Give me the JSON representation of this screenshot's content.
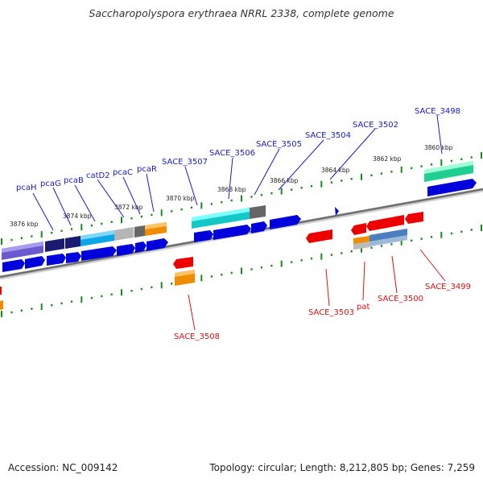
{
  "header": {
    "title": "Saccharopolyspora erythraea NRRL 2338, complete genome"
  },
  "footer": {
    "accession": "Accession: NC_009142",
    "summary": "Topology: circular; Length: 8,212,805 bp; Genes: 7,259"
  },
  "colors": {
    "forward_label": "#1a1acc",
    "reverse_label": "#dd1111",
    "tick": "#1a8a1a",
    "backbone": "#7a7a7a"
  },
  "scale": {
    "unit": "kbp",
    "labels": [
      "3876 kbp",
      "3874 kbp",
      "3872 kbp",
      "3870 kbp",
      "3868 kbp",
      "3866 kbp",
      "3864 kbp",
      "3862 kbp",
      "3860 kbp"
    ]
  },
  "genes": {
    "forward": [
      "pcaH",
      "pcaG",
      "pcaB",
      "catD2",
      "pcaC",
      "pcaR",
      "SACE_3507",
      "SACE_3506",
      "SACE_3505",
      "SACE_3504",
      "SACE_3502",
      "SACE_3498"
    ],
    "reverse": [
      "SACE_3508",
      "SACE_3503",
      "pat",
      "SACE_3500",
      "SACE_3499"
    ]
  }
}
